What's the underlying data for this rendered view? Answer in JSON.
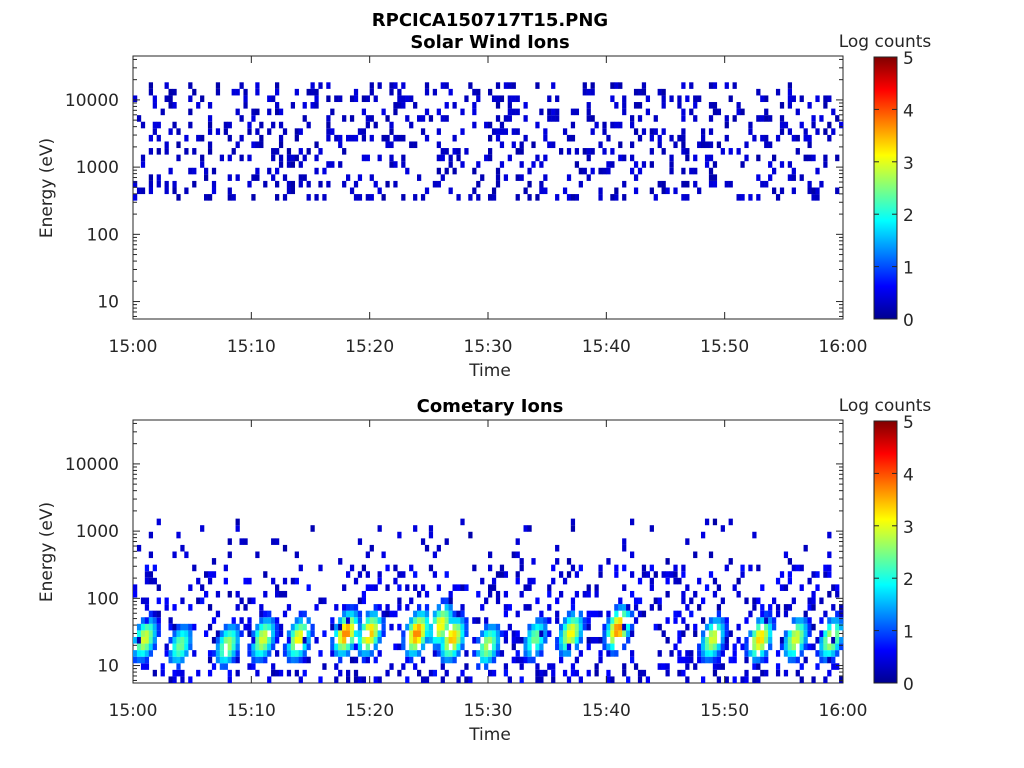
{
  "figure_title": "RPCICA150717T15.PNG",
  "chart_data": [
    {
      "type": "heatmap",
      "title": "Solar Wind Ions",
      "xlabel": "Time",
      "ylabel": "Energy (eV)",
      "yscale": "log",
      "ylim": [
        5.5,
        45000
      ],
      "xlim": [
        "15:00",
        "16:00"
      ],
      "xticks": [
        "15:00",
        "15:10",
        "15:20",
        "15:30",
        "15:40",
        "15:50",
        "16:00"
      ],
      "yticks": [
        10,
        100,
        1000,
        10000
      ],
      "ytick_labels": [
        "10",
        "100",
        "1000",
        "10000"
      ],
      "colorbar": {
        "label": "Log counts",
        "range": [
          0,
          5
        ],
        "ticks": [
          "0",
          "1",
          "2",
          "3",
          "4",
          "5"
        ],
        "colormap": "jet"
      },
      "z_summary": "Sparse counts of about 0-0.5 log counts scattered between roughly 300 eV and 20000 eV over the whole hour"
    },
    {
      "type": "heatmap",
      "title": "Cometary Ions",
      "xlabel": "Time",
      "ylabel": "Energy (eV)",
      "yscale": "log",
      "ylim": [
        5.5,
        45000
      ],
      "xlim": [
        "15:00",
        "16:00"
      ],
      "xticks": [
        "15:00",
        "15:10",
        "15:20",
        "15:30",
        "15:40",
        "15:50",
        "16:00"
      ],
      "yticks": [
        10,
        100,
        1000,
        10000
      ],
      "ytick_labels": [
        "10",
        "100",
        "1000",
        "10000"
      ],
      "colorbar": {
        "label": "Log counts",
        "range": [
          0,
          5
        ],
        "ticks": [
          "0",
          "1",
          "2",
          "3",
          "4",
          "5"
        ],
        "colormap": "jet"
      },
      "z_summary": "Intense bursts below about 300 eV, peaking near 15-40 eV at about 3-4 log counts; sparse low counts up to about 1500 eV",
      "bursts": [
        {
          "t": "15:01",
          "peak_ev": 25,
          "z": 3.0
        },
        {
          "t": "15:04",
          "peak_ev": 20,
          "z": 2.5
        },
        {
          "t": "15:08",
          "peak_ev": 20,
          "z": 2.8
        },
        {
          "t": "15:11",
          "peak_ev": 25,
          "z": 3.0
        },
        {
          "t": "15:14",
          "peak_ev": 25,
          "z": 3.2
        },
        {
          "t": "15:18",
          "peak_ev": 30,
          "z": 3.8
        },
        {
          "t": "15:20",
          "peak_ev": 30,
          "z": 3.5
        },
        {
          "t": "15:24",
          "peak_ev": 30,
          "z": 3.8
        },
        {
          "t": "15:26",
          "peak_ev": 40,
          "z": 3.2
        },
        {
          "t": "15:27",
          "peak_ev": 25,
          "z": 3.5
        },
        {
          "t": "15:30",
          "peak_ev": 20,
          "z": 2.8
        },
        {
          "t": "15:34",
          "peak_ev": 25,
          "z": 2.5
        },
        {
          "t": "15:37",
          "peak_ev": 30,
          "z": 3.2
        },
        {
          "t": "15:41",
          "peak_ev": 35,
          "z": 3.8
        },
        {
          "t": "15:49",
          "peak_ev": 25,
          "z": 3.0
        },
        {
          "t": "15:53",
          "peak_ev": 25,
          "z": 3.4
        },
        {
          "t": "15:56",
          "peak_ev": 25,
          "z": 3.0
        },
        {
          "t": "15:59",
          "peak_ev": 25,
          "z": 3.0
        }
      ]
    }
  ]
}
